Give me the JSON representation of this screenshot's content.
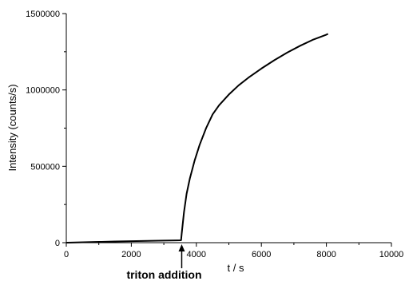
{
  "chart_data": {
    "type": "line",
    "title": "",
    "xlabel": "t / s",
    "ylabel": "Intensity (counts/s)",
    "xlim": [
      0,
      10000
    ],
    "ylim": [
      0,
      1500000
    ],
    "x_ticks": [
      0,
      2000,
      4000,
      6000,
      8000,
      10000
    ],
    "y_ticks": [
      0,
      500000,
      1000000,
      1500000
    ],
    "x_tick_labels": [
      "0",
      "2000",
      "4000",
      "6000",
      "8000",
      "10000"
    ],
    "y_tick_labels": [
      "0",
      "500000",
      "1000000",
      "1500000"
    ],
    "grid": false,
    "series": [
      {
        "color": "#000000",
        "x": [
          0,
          500,
          1000,
          1500,
          2000,
          2500,
          3000,
          3400,
          3530,
          3550,
          3620,
          3700,
          3800,
          3950,
          4100,
          4300,
          4500,
          4700,
          5000,
          5300,
          5600,
          6000,
          6400,
          6800,
          7200,
          7600,
          8000,
          8050
        ],
        "y": [
          0,
          2500,
          5000,
          7500,
          10000,
          12000,
          13500,
          15000,
          16000,
          60000,
          200000,
          320000,
          420000,
          540000,
          640000,
          750000,
          840000,
          900000,
          970000,
          1030000,
          1080000,
          1140000,
          1195000,
          1245000,
          1290000,
          1330000,
          1362000,
          1367000
        ]
      }
    ],
    "annotations": [
      {
        "text": "triton addition",
        "x": 3550
      }
    ]
  }
}
